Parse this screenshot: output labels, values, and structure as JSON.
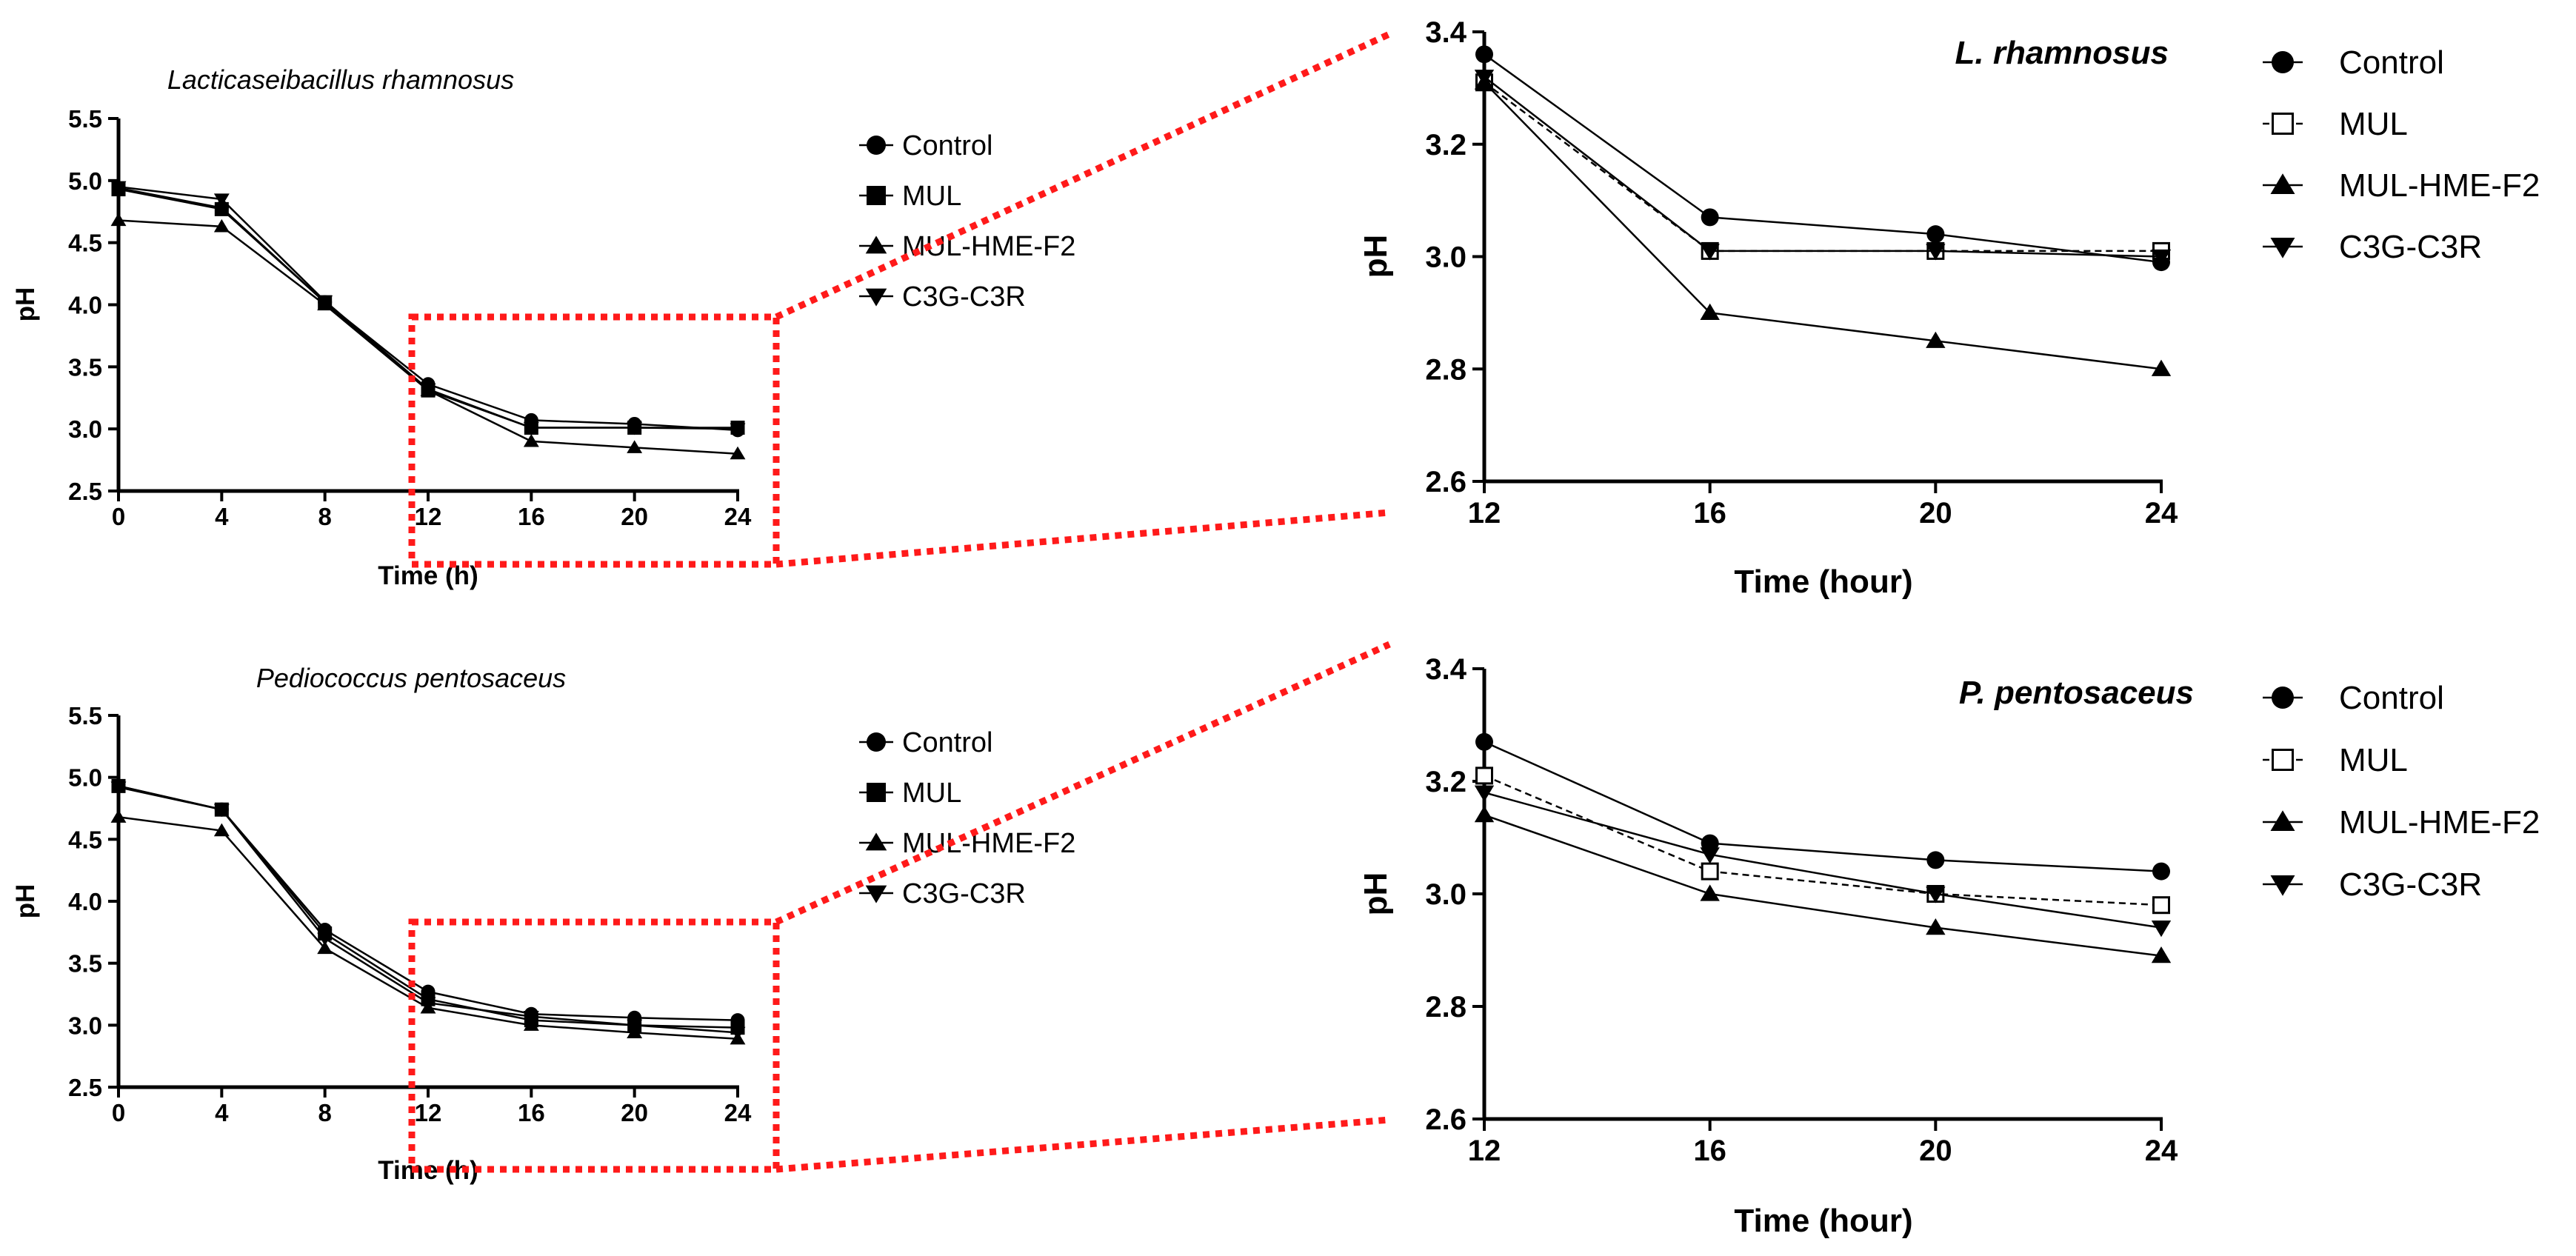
{
  "chart_data": [
    {
      "id": "lr-full",
      "type": "line",
      "title": "Lacticaseibacillus rhamnosus",
      "xlabel": "Time (h)",
      "ylabel": "pH",
      "x": [
        0,
        4,
        8,
        12,
        16,
        20,
        24
      ],
      "xticks": [
        "0",
        "4",
        "8",
        "12",
        "16",
        "20",
        "24"
      ],
      "ylim": [
        2.5,
        5.5
      ],
      "yticks": [
        "2.5",
        "3.0",
        "3.5",
        "4.0",
        "4.5",
        "5.0",
        "5.5"
      ],
      "series": [
        {
          "name": "Control",
          "marker": "circle",
          "dash": "solid",
          "values": [
            4.94,
            4.78,
            4.02,
            3.36,
            3.07,
            3.04,
            2.99
          ]
        },
        {
          "name": "MUL",
          "marker": "square",
          "dash": "solid",
          "values": [
            4.93,
            4.77,
            4.02,
            3.31,
            3.01,
            3.01,
            3.01
          ]
        },
        {
          "name": "MUL-HME-F2",
          "marker": "triangle-up",
          "dash": "solid",
          "values": [
            4.68,
            4.63,
            4.0,
            3.31,
            2.9,
            2.85,
            2.8
          ]
        },
        {
          "name": "C3G-C3R",
          "marker": "triangle-down",
          "dash": "solid",
          "values": [
            4.95,
            4.85,
            4.03,
            3.32,
            3.01,
            3.01,
            3.0
          ]
        }
      ]
    },
    {
      "id": "lr-zoom",
      "type": "line",
      "title": "L. rhamnosus",
      "xlabel": "Time (hour)",
      "ylabel": "pH",
      "x": [
        12,
        16,
        20,
        24
      ],
      "xticks": [
        "12",
        "16",
        "20",
        "24"
      ],
      "ylim": [
        2.6,
        3.4
      ],
      "yticks": [
        "2.6",
        "2.8",
        "3.0",
        "3.2",
        "3.4"
      ],
      "series": [
        {
          "name": "Control",
          "marker": "circle",
          "dash": "solid",
          "values": [
            3.36,
            3.07,
            3.04,
            2.99
          ]
        },
        {
          "name": "MUL",
          "marker": "square-open",
          "dash": "dashed",
          "values": [
            3.31,
            3.01,
            3.01,
            3.01
          ]
        },
        {
          "name": "MUL-HME-F2",
          "marker": "triangle-up",
          "dash": "solid",
          "values": [
            3.31,
            2.9,
            2.85,
            2.8
          ]
        },
        {
          "name": "C3G-C3R",
          "marker": "triangle-down",
          "dash": "solid",
          "values": [
            3.32,
            3.01,
            3.01,
            3.0
          ]
        }
      ]
    },
    {
      "id": "pp-full",
      "type": "line",
      "title": "Pediococcus pentosaceus",
      "xlabel": "Time (h)",
      "ylabel": "pH",
      "x": [
        0,
        4,
        8,
        12,
        16,
        20,
        24
      ],
      "xticks": [
        "0",
        "4",
        "8",
        "12",
        "16",
        "20",
        "24"
      ],
      "ylim": [
        2.5,
        5.5
      ],
      "yticks": [
        "2.5",
        "3.0",
        "3.5",
        "4.0",
        "4.5",
        "5.0",
        "5.5"
      ],
      "series": [
        {
          "name": "Control",
          "marker": "circle",
          "dash": "solid",
          "values": [
            4.93,
            4.74,
            3.77,
            3.27,
            3.09,
            3.06,
            3.04
          ]
        },
        {
          "name": "MUL",
          "marker": "square",
          "dash": "solid",
          "values": [
            4.93,
            4.74,
            3.74,
            3.21,
            3.04,
            3.0,
            2.98
          ]
        },
        {
          "name": "MUL-HME-F2",
          "marker": "triangle-up",
          "dash": "solid",
          "values": [
            4.68,
            4.57,
            3.62,
            3.14,
            3.0,
            2.94,
            2.89
          ]
        },
        {
          "name": "C3G-C3R",
          "marker": "triangle-down",
          "dash": "solid",
          "values": [
            4.92,
            4.74,
            3.7,
            3.18,
            3.07,
            3.0,
            2.94
          ]
        }
      ]
    },
    {
      "id": "pp-zoom",
      "type": "line",
      "title": "P. pentosaceus",
      "xlabel": "Time (hour)",
      "ylabel": "pH",
      "x": [
        12,
        16,
        20,
        24
      ],
      "xticks": [
        "12",
        "16",
        "20",
        "24"
      ],
      "ylim": [
        2.6,
        3.4
      ],
      "yticks": [
        "2.6",
        "2.8",
        "3.0",
        "3.2",
        "3.4"
      ],
      "series": [
        {
          "name": "Control",
          "marker": "circle",
          "dash": "solid",
          "values": [
            3.27,
            3.09,
            3.06,
            3.04
          ]
        },
        {
          "name": "MUL",
          "marker": "square-open",
          "dash": "dashed",
          "values": [
            3.21,
            3.04,
            3.0,
            2.98
          ]
        },
        {
          "name": "MUL-HME-F2",
          "marker": "triangle-up",
          "dash": "solid",
          "values": [
            3.14,
            3.0,
            2.94,
            2.89
          ]
        },
        {
          "name": "C3G-C3R",
          "marker": "triangle-down",
          "dash": "solid",
          "values": [
            3.18,
            3.07,
            3.0,
            2.94
          ]
        }
      ]
    }
  ],
  "colors": {
    "lines": "#000000",
    "zoom_indicator": "#ff1a1a",
    "background": "#ffffff"
  }
}
